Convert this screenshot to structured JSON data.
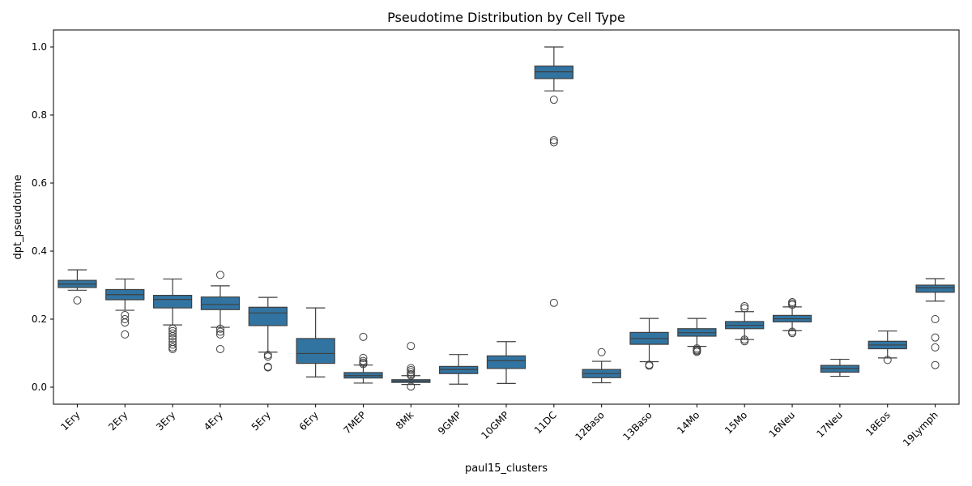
{
  "chart_data": {
    "type": "box",
    "title": "Pseudotime Distribution by Cell Type",
    "xlabel": "paul15_clusters",
    "ylabel": "dpt_pseudotime",
    "ylim": [
      -0.05,
      1.05
    ],
    "yticks": [
      "0.0",
      "0.2",
      "0.4",
      "0.6",
      "0.8",
      "1.0"
    ],
    "box_color": "#3274a1",
    "grid": false,
    "categories": [
      "1Ery",
      "2Ery",
      "3Ery",
      "4Ery",
      "5Ery",
      "6Ery",
      "7MEP",
      "8Mk",
      "9GMP",
      "10GMP",
      "11DC",
      "12Baso",
      "13Baso",
      "14Mo",
      "15Mo",
      "16Neu",
      "17Neu",
      "18Eos",
      "19Lymph"
    ],
    "boxes": [
      {
        "whisker_low": 0.285,
        "q1": 0.293,
        "median": 0.303,
        "q3": 0.314,
        "whisker_high": 0.345,
        "outliers": [
          0.255
        ]
      },
      {
        "whisker_low": 0.226,
        "q1": 0.257,
        "median": 0.272,
        "q3": 0.287,
        "whisker_high": 0.318,
        "outliers": [
          0.212,
          0.2,
          0.19,
          0.155
        ]
      },
      {
        "whisker_low": 0.183,
        "q1": 0.233,
        "median": 0.258,
        "q3": 0.27,
        "whisker_high": 0.318,
        "outliers": [
          0.172,
          0.165,
          0.158,
          0.15,
          0.142,
          0.133,
          0.125,
          0.117,
          0.112
        ]
      },
      {
        "whisker_low": 0.176,
        "q1": 0.228,
        "median": 0.243,
        "q3": 0.265,
        "whisker_high": 0.298,
        "outliers": [
          0.33,
          0.172,
          0.163,
          0.155,
          0.112
        ]
      },
      {
        "whisker_low": 0.103,
        "q1": 0.181,
        "median": 0.218,
        "q3": 0.235,
        "whisker_high": 0.264,
        "outliers": [
          0.095,
          0.09,
          0.06,
          0.058
        ]
      },
      {
        "whisker_low": 0.03,
        "q1": 0.07,
        "median": 0.099,
        "q3": 0.143,
        "whisker_high": 0.233,
        "outliers": []
      },
      {
        "whisker_low": 0.012,
        "q1": 0.027,
        "median": 0.034,
        "q3": 0.043,
        "whisker_high": 0.065,
        "outliers": [
          0.148,
          0.086,
          0.077,
          0.072,
          0.068
        ]
      },
      {
        "whisker_low": 0.008,
        "q1": 0.014,
        "median": 0.018,
        "q3": 0.022,
        "whisker_high": 0.034,
        "outliers": [
          0.121,
          0.056,
          0.05,
          0.044,
          0.038,
          0.034,
          0.002
        ]
      },
      {
        "whisker_low": 0.009,
        "q1": 0.04,
        "median": 0.052,
        "q3": 0.061,
        "whisker_high": 0.096,
        "outliers": []
      },
      {
        "whisker_low": 0.011,
        "q1": 0.055,
        "median": 0.078,
        "q3": 0.092,
        "whisker_high": 0.134,
        "outliers": []
      },
      {
        "whisker_low": 0.871,
        "q1": 0.907,
        "median": 0.927,
        "q3": 0.944,
        "whisker_high": 1.0,
        "outliers": [
          0.845,
          0.726,
          0.72,
          0.248
        ]
      },
      {
        "whisker_low": 0.013,
        "q1": 0.028,
        "median": 0.04,
        "q3": 0.052,
        "whisker_high": 0.076,
        "outliers": [
          0.103
        ]
      },
      {
        "whisker_low": 0.075,
        "q1": 0.126,
        "median": 0.143,
        "q3": 0.161,
        "whisker_high": 0.202,
        "outliers": [
          0.066,
          0.063
        ]
      },
      {
        "whisker_low": 0.12,
        "q1": 0.15,
        "median": 0.16,
        "q3": 0.172,
        "whisker_high": 0.202,
        "outliers": [
          0.114,
          0.11,
          0.107,
          0.104
        ]
      },
      {
        "whisker_low": 0.14,
        "q1": 0.172,
        "median": 0.182,
        "q3": 0.193,
        "whisker_high": 0.222,
        "outliers": [
          0.238,
          0.232,
          0.14,
          0.135
        ]
      },
      {
        "whisker_low": 0.166,
        "q1": 0.192,
        "median": 0.201,
        "q3": 0.211,
        "whisker_high": 0.236,
        "outliers": [
          0.25,
          0.246,
          0.242,
          0.163,
          0.159
        ]
      },
      {
        "whisker_low": 0.032,
        "q1": 0.044,
        "median": 0.055,
        "q3": 0.064,
        "whisker_high": 0.082,
        "outliers": []
      },
      {
        "whisker_low": 0.086,
        "q1": 0.113,
        "median": 0.124,
        "q3": 0.135,
        "whisker_high": 0.165,
        "outliers": [
          0.08
        ]
      },
      {
        "whisker_low": 0.253,
        "q1": 0.279,
        "median": 0.292,
        "q3": 0.3,
        "whisker_high": 0.319,
        "outliers": [
          0.2,
          0.146,
          0.117,
          0.065
        ]
      }
    ]
  }
}
